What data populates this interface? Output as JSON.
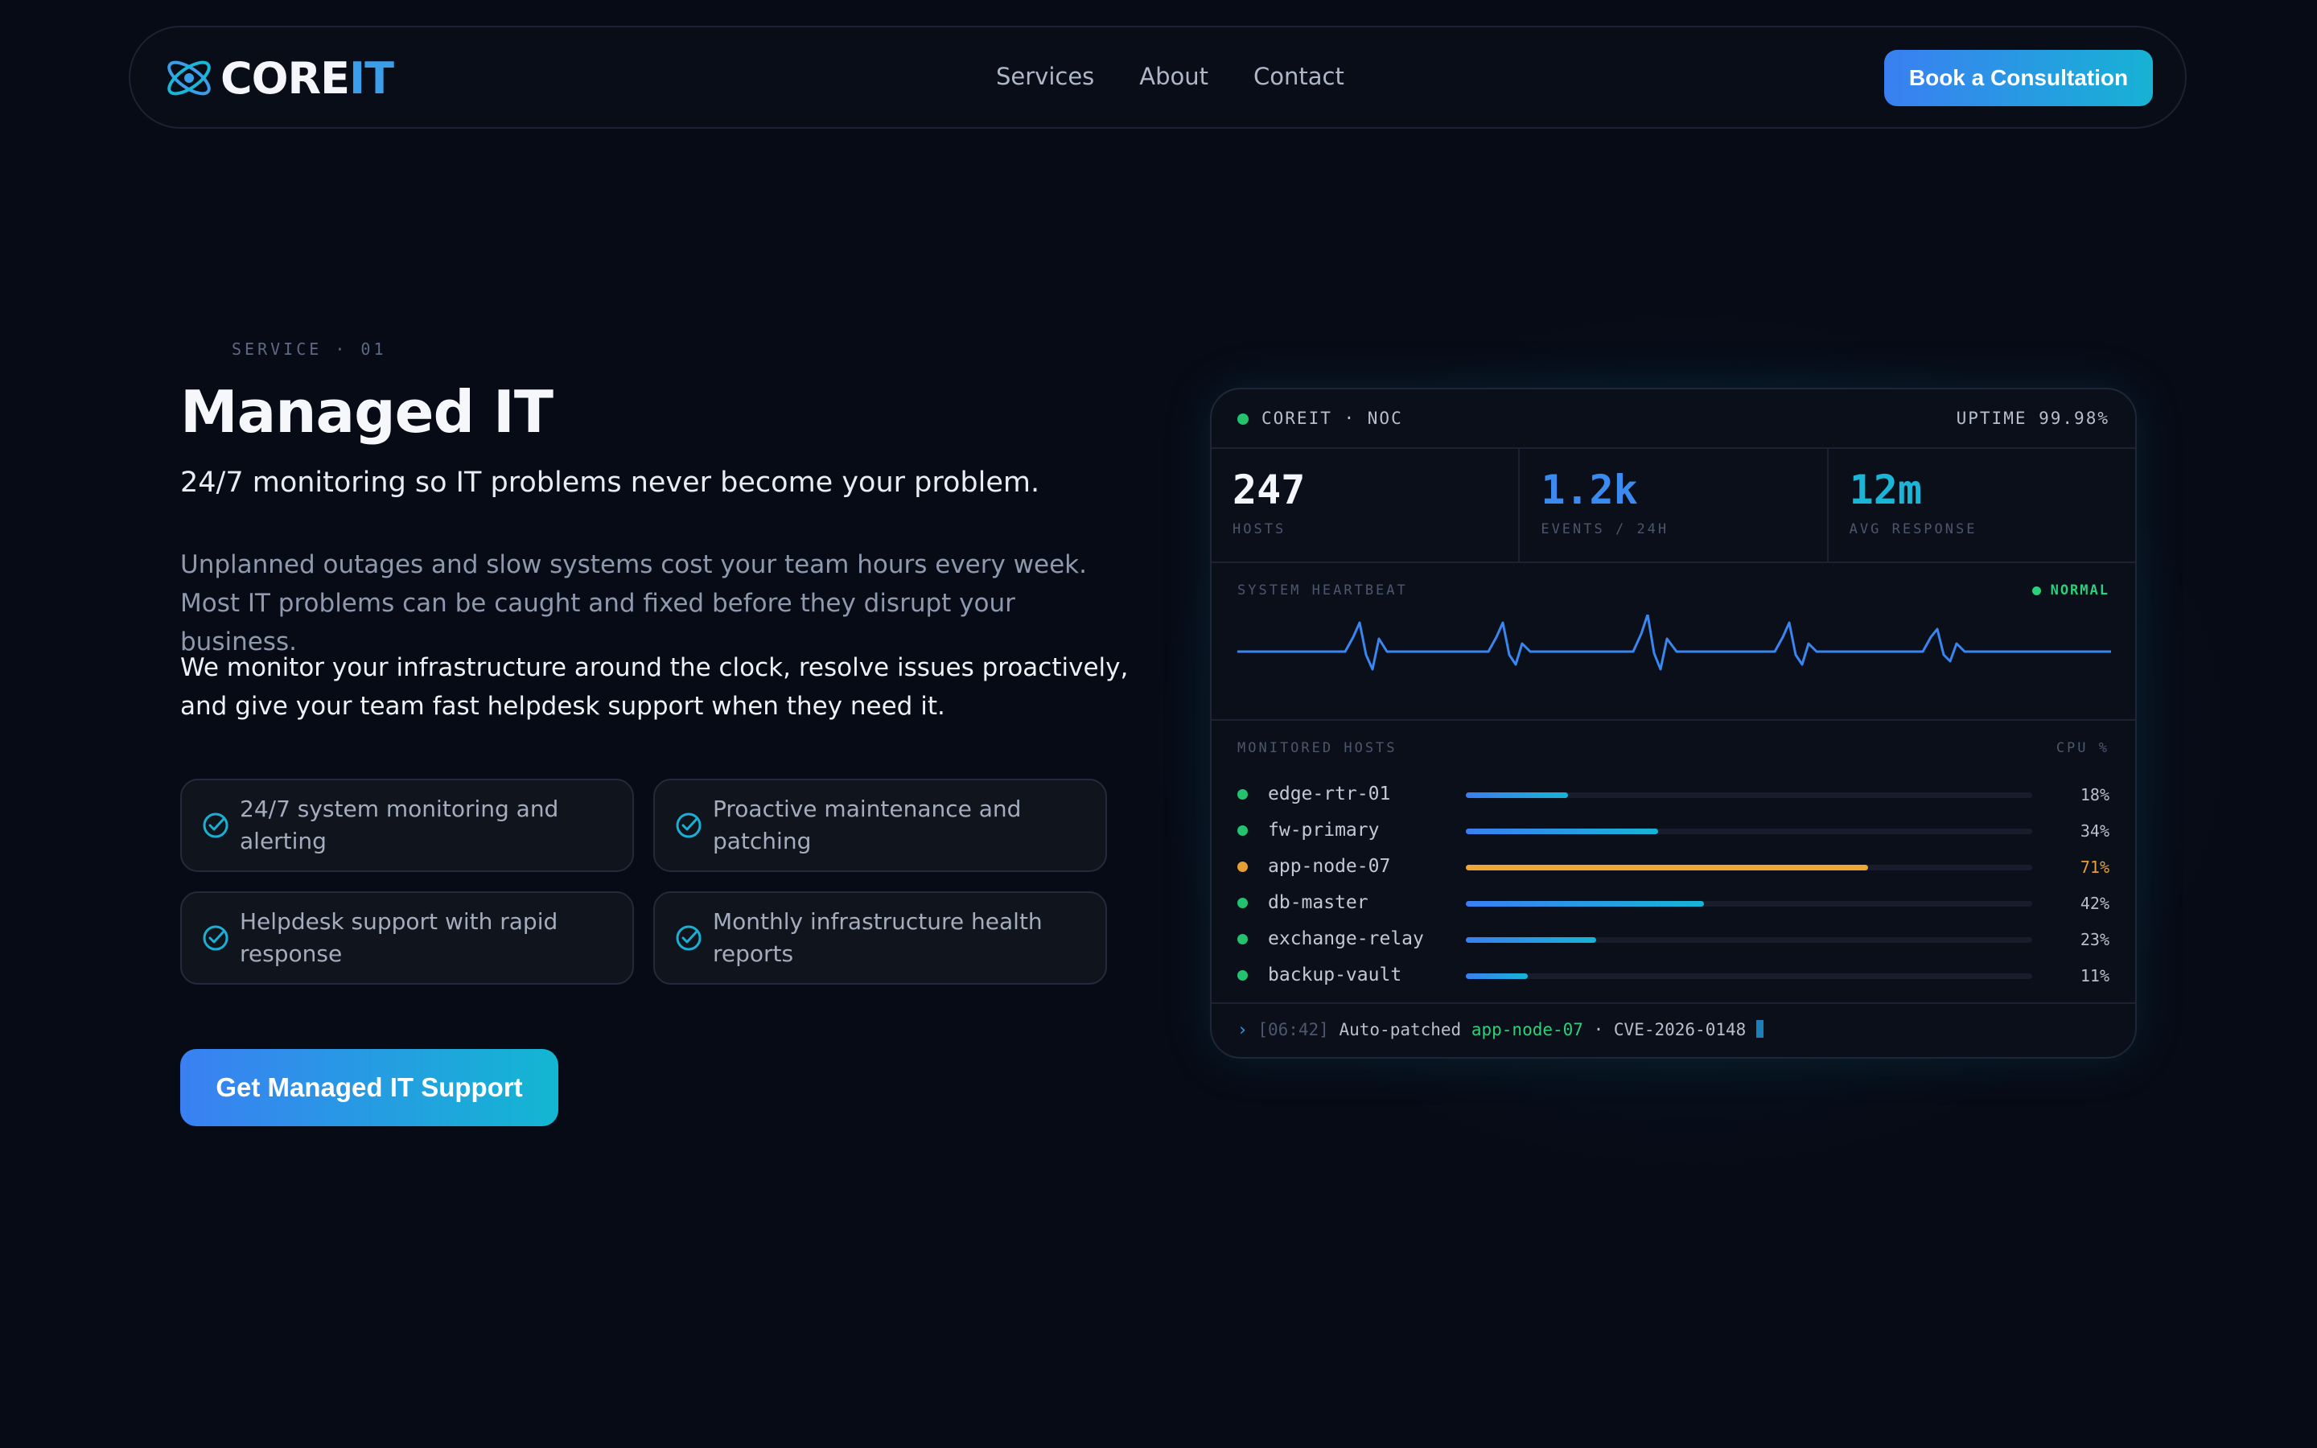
{
  "nav": {
    "brand_primary": "CORE",
    "brand_accent": "IT",
    "links": [
      "Services",
      "About",
      "Contact"
    ],
    "cta": "Book a Consultation"
  },
  "hero": {
    "eyebrow": "SERVICE · 01",
    "title": "Managed IT",
    "tagline": "24/7 monitoring so IT problems never become your problem.",
    "para1": "Unplanned outages and slow systems cost your team hours every week. Most IT problems can be caught and fixed before they disrupt your business.",
    "para2": "We monitor your infrastructure around the clock, resolve issues proactively, and give your team fast helpdesk support when they need it.",
    "features": [
      "24/7 system monitoring and alerting",
      "Proactive maintenance and patching",
      "Helpdesk support with rapid response",
      "Monthly infrastructure health reports"
    ],
    "cta": "Get Managed IT Support"
  },
  "panel": {
    "title": "COREIT · NOC",
    "uptime": "UPTIME 99.98%",
    "stats": [
      {
        "value": "247",
        "label": "HOSTS",
        "color": "#f4f6fb"
      },
      {
        "value": "1.2k",
        "label": "EVENTS / 24H",
        "color": "#3b8af0"
      },
      {
        "value": "12m",
        "label": "AVG RESPONSE",
        "color": "#19b6d8"
      }
    ],
    "heartbeat_label": "SYSTEM HEARTBEAT",
    "heartbeat_status": "NORMAL",
    "hosts_label": "MONITORED HOSTS",
    "cpu_label": "CPU %",
    "hosts": [
      {
        "name": "edge-rtr-01",
        "cpu": 18,
        "pct": "18%",
        "status": "ok"
      },
      {
        "name": "fw-primary",
        "cpu": 34,
        "pct": "34%",
        "status": "ok"
      },
      {
        "name": "app-node-07",
        "cpu": 71,
        "pct": "71%",
        "status": "warn"
      },
      {
        "name": "db-master",
        "cpu": 42,
        "pct": "42%",
        "status": "ok"
      },
      {
        "name": "exchange-relay",
        "cpu": 23,
        "pct": "23%",
        "status": "ok"
      },
      {
        "name": "backup-vault",
        "cpu": 11,
        "pct": "11%",
        "status": "ok"
      }
    ],
    "log": {
      "prompt": "›",
      "time": "[06:42]",
      "msg": "Auto-patched",
      "host": "app-node-07",
      "sep": "·",
      "cve": "CVE-2026-0148"
    }
  },
  "colors": {
    "ok": "#24c16e",
    "warn": "#e5a033",
    "bar_ok_start": "#3a7ff2",
    "bar_ok_end": "#16b4d6",
    "bar_warn": "#f0a635"
  }
}
